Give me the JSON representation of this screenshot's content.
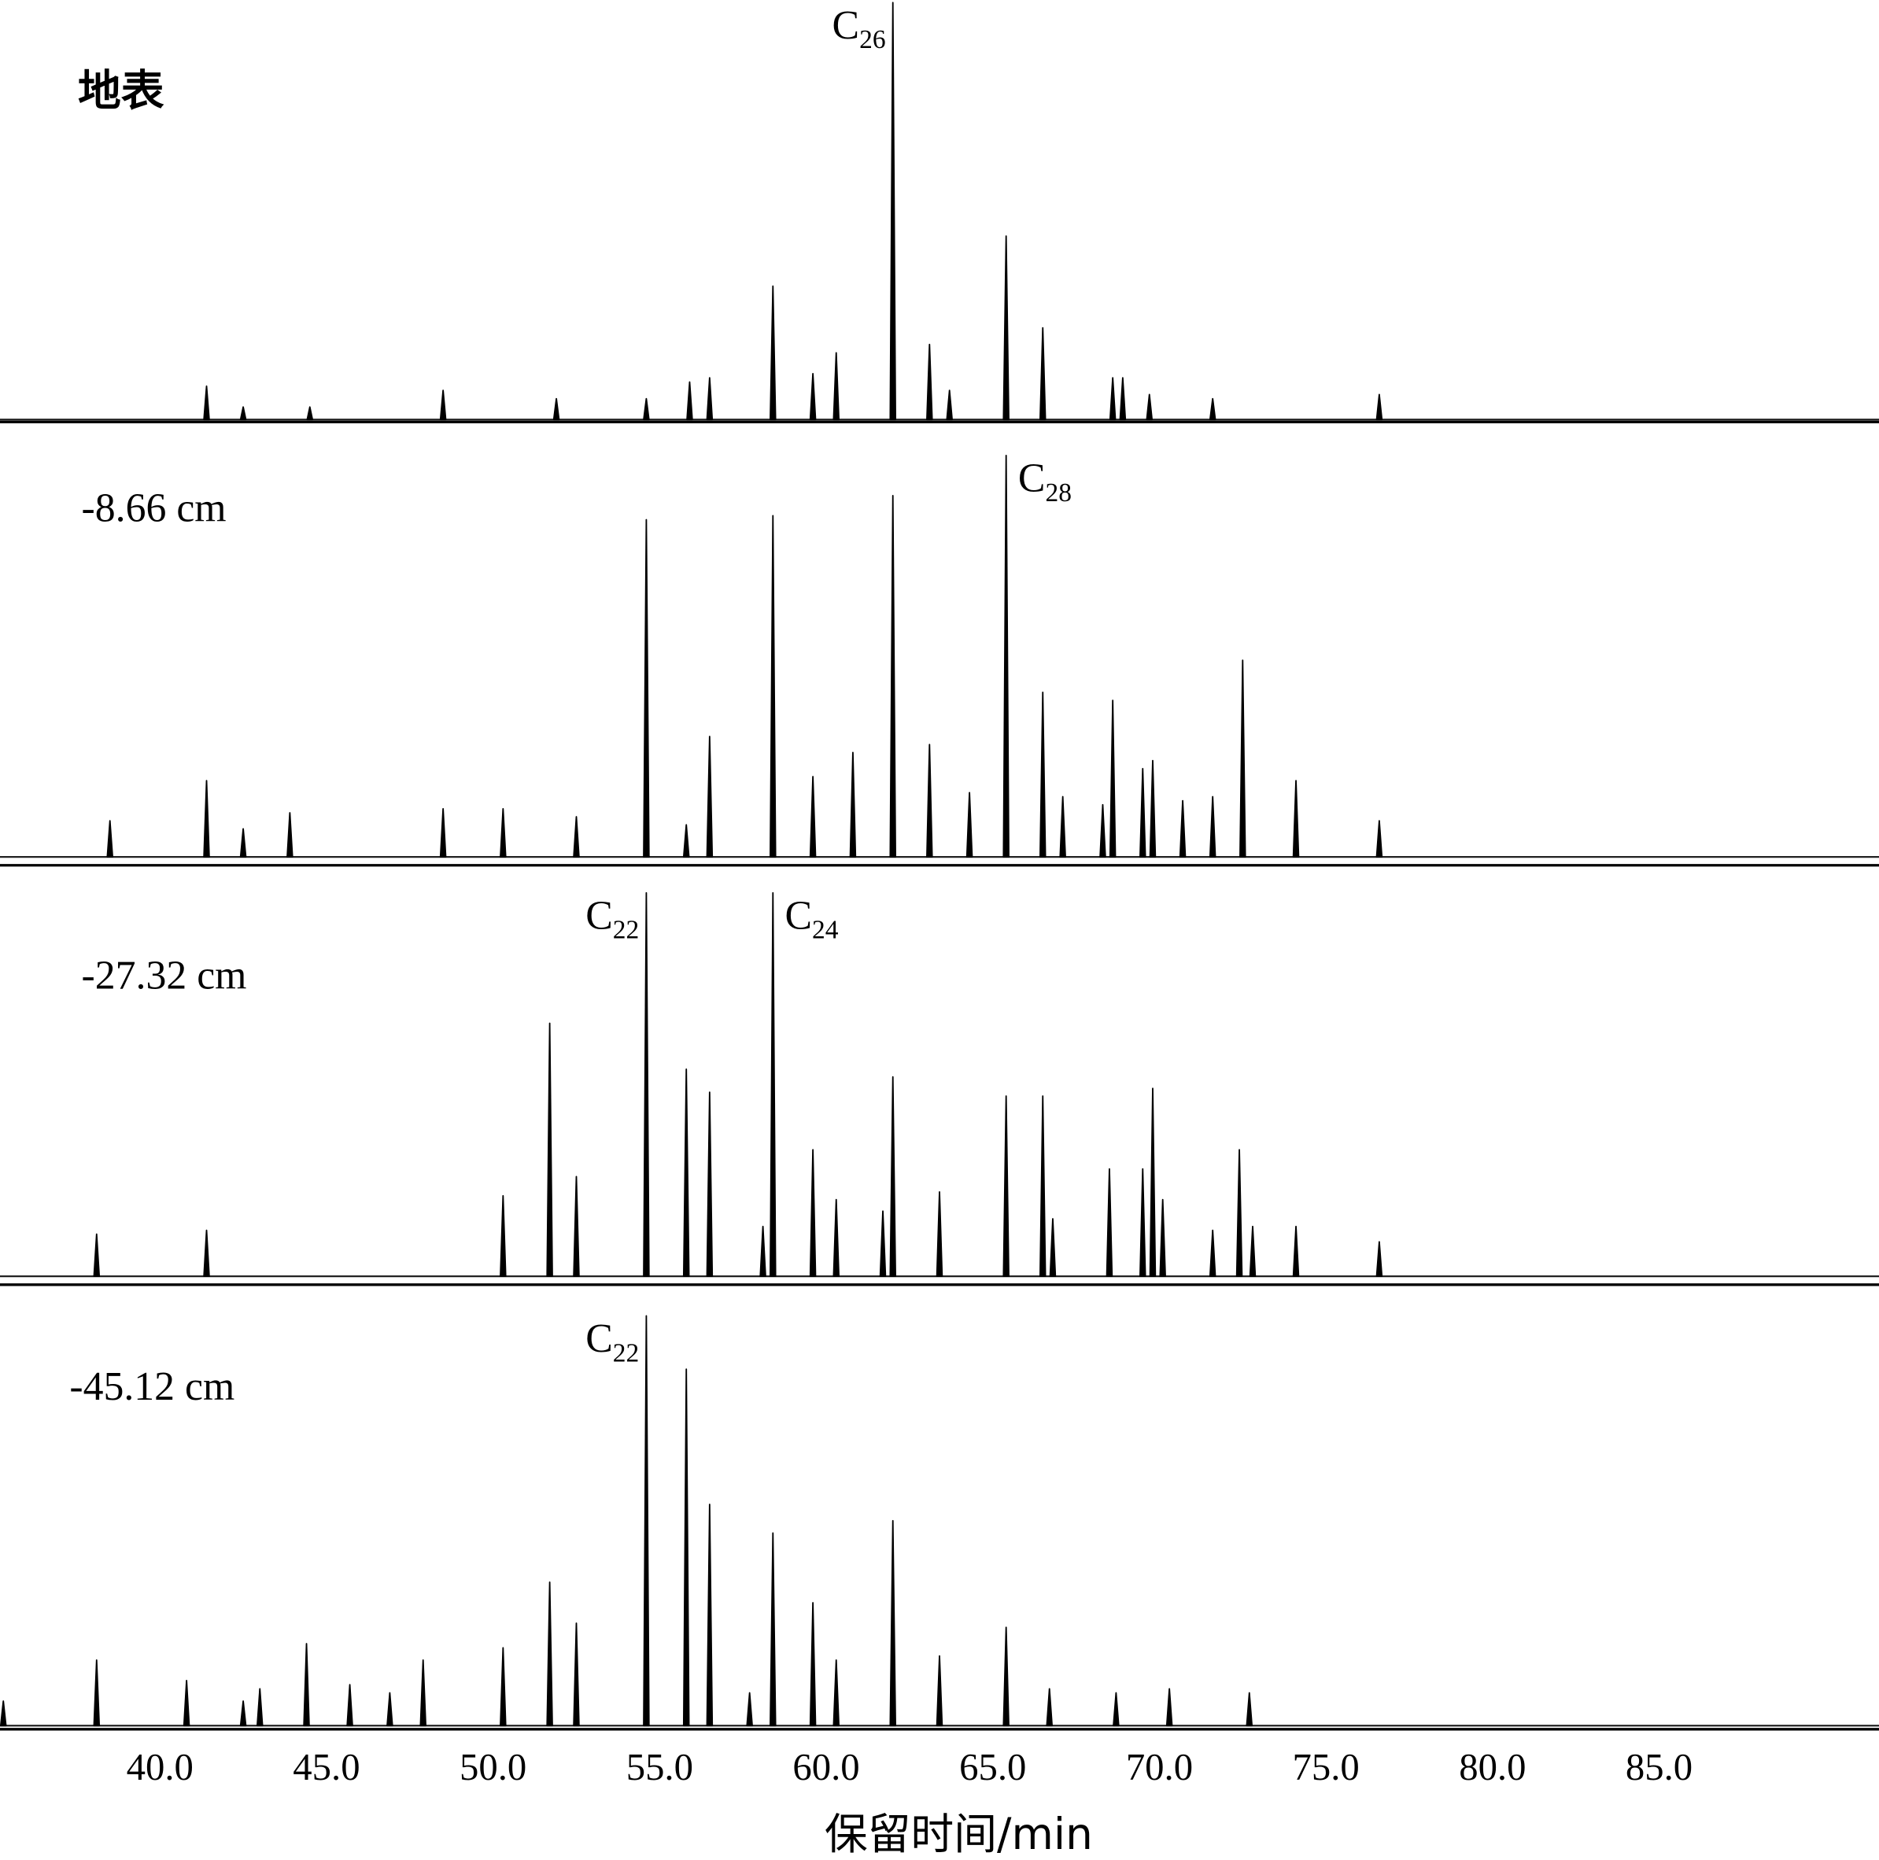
{
  "chart_data": [
    {
      "type": "spike",
      "label": "地表",
      "xlim": [
        35.2,
        91.6
      ],
      "ylim": [
        0,
        100
      ],
      "color": "#000000",
      "x": [
        41.4,
        42.5,
        44.5,
        48.5,
        51.9,
        54.6,
        55.9,
        56.5,
        58.4,
        59.6,
        60.3,
        62.0,
        63.1,
        63.7,
        65.4,
        66.5,
        68.6,
        68.9,
        69.7,
        71.6,
        76.6
      ],
      "values": [
        8,
        3,
        3,
        7,
        5,
        5,
        9,
        10,
        32,
        11,
        16,
        100,
        18,
        7,
        44,
        22,
        10,
        10,
        6,
        5,
        6
      ],
      "peak_labels": [
        {
          "label": "C",
          "subscript": "26",
          "x": 62.0
        }
      ]
    },
    {
      "type": "spike",
      "label": "-8.66 cm",
      "xlim": [
        35.2,
        91.6
      ],
      "ylim": [
        0,
        100
      ],
      "color": "#000000",
      "x": [
        38.5,
        41.4,
        42.5,
        43.9,
        48.5,
        50.3,
        52.5,
        54.6,
        55.8,
        56.5,
        58.4,
        59.6,
        60.8,
        62.0,
        63.1,
        64.3,
        65.4,
        66.5,
        67.1,
        68.3,
        68.6,
        69.5,
        69.8,
        70.7,
        71.6,
        72.5,
        74.1,
        76.6
      ],
      "values": [
        9,
        19,
        7,
        11,
        12,
        12,
        10,
        84,
        8,
        30,
        85,
        20,
        26,
        90,
        28,
        16,
        100,
        41,
        15,
        13,
        39,
        22,
        24,
        14,
        15,
        49,
        19,
        9
      ],
      "peak_labels": [
        {
          "label": "C",
          "subscript": "28",
          "x": 65.4
        }
      ]
    },
    {
      "type": "spike",
      "label": "-27.32 cm",
      "xlim": [
        35.2,
        91.6
      ],
      "ylim": [
        0,
        100
      ],
      "color": "#000000",
      "x": [
        38.1,
        41.4,
        50.3,
        51.7,
        52.5,
        54.6,
        55.8,
        56.5,
        58.1,
        58.4,
        59.6,
        60.3,
        61.7,
        62.0,
        63.4,
        65.4,
        66.5,
        66.8,
        68.5,
        69.5,
        69.8,
        70.1,
        71.6,
        72.4,
        72.8,
        74.1,
        76.6
      ],
      "values": [
        11,
        12,
        21,
        66,
        26,
        100,
        54,
        48,
        13,
        100,
        33,
        20,
        17,
        52,
        22,
        47,
        47,
        15,
        28,
        28,
        49,
        20,
        12,
        33,
        13,
        13,
        9
      ],
      "peak_labels": [
        {
          "label": "C",
          "subscript": "22",
          "x": 54.6
        },
        {
          "label": "C",
          "subscript": "24",
          "x": 58.4
        }
      ]
    },
    {
      "type": "spike",
      "label": "-45.12 cm",
      "xlim": [
        35.2,
        91.6
      ],
      "ylim": [
        0,
        100
      ],
      "color": "#000000",
      "x": [
        35.3,
        38.1,
        40.8,
        42.5,
        43.0,
        44.4,
        45.7,
        46.9,
        47.9,
        50.3,
        51.7,
        52.5,
        54.6,
        55.8,
        56.5,
        57.7,
        58.4,
        59.6,
        60.3,
        62.0,
        63.4,
        65.4,
        66.7,
        68.7,
        70.3,
        72.7
      ],
      "values": [
        6,
        16,
        11,
        6,
        9,
        20,
        10,
        8,
        16,
        19,
        35,
        25,
        100,
        87,
        54,
        8,
        47,
        30,
        16,
        50,
        17,
        24,
        9,
        8,
        9,
        8
      ],
      "peak_labels": [
        {
          "label": "C",
          "subscript": "22",
          "x": 54.6
        }
      ],
      "xlabel": "保留时间/min",
      "xticks": [
        {
          "value": 40,
          "label": "40.0"
        },
        {
          "value": 45,
          "label": "45.0"
        },
        {
          "value": 50,
          "label": "50.0"
        },
        {
          "value": 55,
          "label": "55.0"
        },
        {
          "value": 60,
          "label": "60.0"
        },
        {
          "value": 65,
          "label": "65.0"
        },
        {
          "value": 70,
          "label": "70.0"
        },
        {
          "value": 75,
          "label": "75.0"
        },
        {
          "value": 80,
          "label": "80.0"
        },
        {
          "value": 85,
          "label": "85.0"
        }
      ]
    }
  ]
}
